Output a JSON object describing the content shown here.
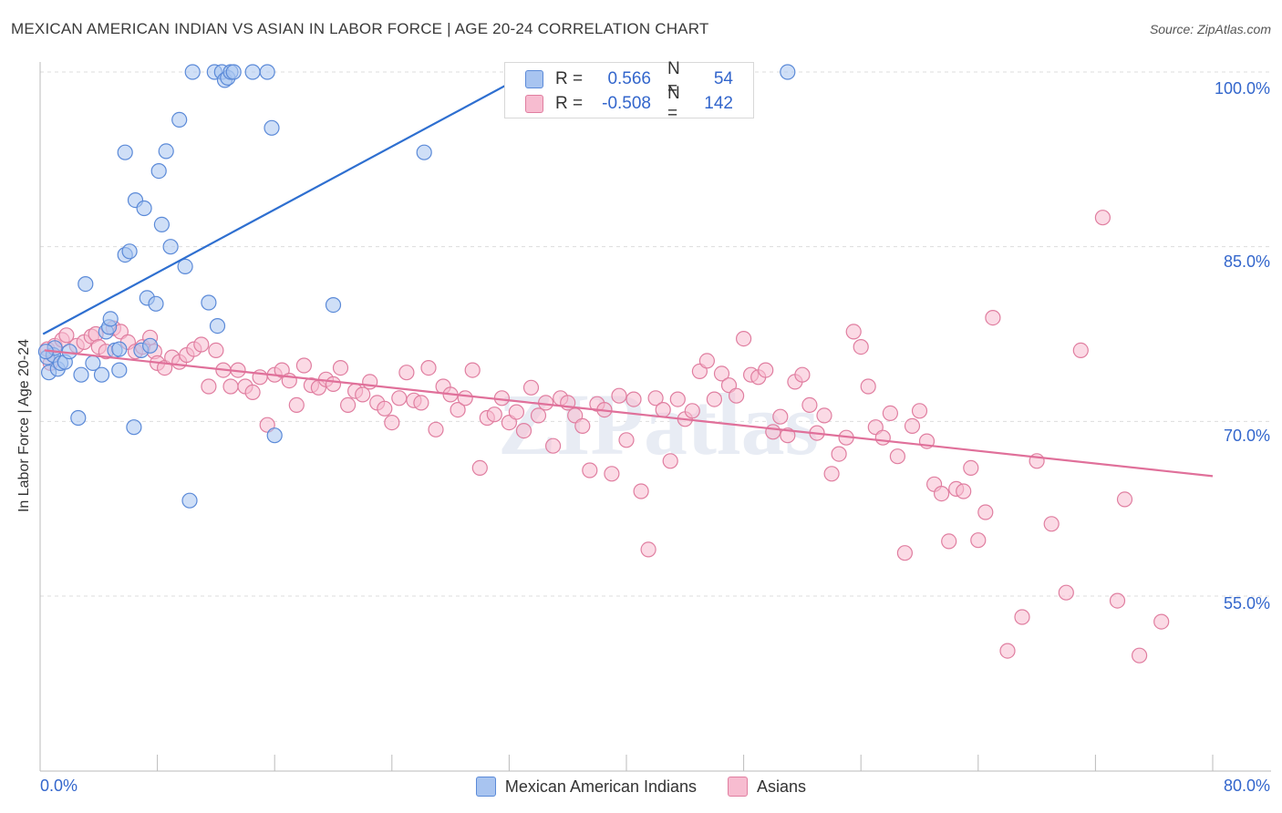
{
  "title": "MEXICAN AMERICAN INDIAN VS ASIAN IN LABOR FORCE | AGE 20-24 CORRELATION CHART",
  "source": "Source: ZipAtlas.com",
  "watermark": "ZIPatlas",
  "colors": {
    "blue_fill": "#a8c4f0",
    "blue_stroke": "#5b8ad8",
    "blue_line": "#2e6fd0",
    "pink_fill": "#f7bcd0",
    "pink_stroke": "#e07ea0",
    "pink_line": "#e0709a",
    "tick_label": "#3366cc",
    "grid": "#dddddd"
  },
  "stats": [
    {
      "r_label": "R =",
      "r_value": "0.566",
      "n_label": "N =",
      "n_value": "54",
      "color": "blue"
    },
    {
      "r_label": "R =",
      "r_value": "-0.508",
      "n_label": "N =",
      "n_value": "142",
      "color": "pink"
    }
  ],
  "legend": [
    {
      "label": "Mexican American Indians",
      "color": "blue"
    },
    {
      "label": "Asians",
      "color": "pink"
    }
  ],
  "chart_data": {
    "type": "scatter",
    "title": "MEXICAN AMERICAN INDIAN VS ASIAN IN LABOR FORCE | AGE 20-24 CORRELATION CHART",
    "xlabel": "",
    "ylabel": "In Labor Force | Age 20-24",
    "xlim": [
      0,
      80
    ],
    "ylim": [
      37,
      102
    ],
    "x_tick_labels": [
      "0.0%",
      "80.0%"
    ],
    "y_ticks": [
      55,
      70,
      85,
      100
    ],
    "y_tick_labels": [
      "55.0%",
      "70.0%",
      "85.0%",
      "100.0%"
    ],
    "grid": true,
    "legend_position": "bottom",
    "series": [
      {
        "name": "Mexican American Indians",
        "color": "blue",
        "trend": {
          "x": [
            0.2,
            34.2
          ],
          "y": [
            77.5,
            100.5
          ]
        },
        "points": [
          [
            0.5,
            75.5
          ],
          [
            0.6,
            74.2
          ],
          [
            0.9,
            75.7
          ],
          [
            1.0,
            76.3
          ],
          [
            1.2,
            74.5
          ],
          [
            1.4,
            75.0
          ],
          [
            1.7,
            75.1
          ],
          [
            2.0,
            76.0
          ],
          [
            2.8,
            74.0
          ],
          [
            3.1,
            81.8
          ],
          [
            3.6,
            75.0
          ],
          [
            4.2,
            74.0
          ],
          [
            4.5,
            77.7
          ],
          [
            4.7,
            78.1
          ],
          [
            4.8,
            78.8
          ],
          [
            5.1,
            76.1
          ],
          [
            5.4,
            74.4
          ],
          [
            5.4,
            76.2
          ],
          [
            5.8,
            84.3
          ],
          [
            5.8,
            93.1
          ],
          [
            6.1,
            84.6
          ],
          [
            6.4,
            69.5
          ],
          [
            6.5,
            89.0
          ],
          [
            6.9,
            76.1
          ],
          [
            7.1,
            88.3
          ],
          [
            7.3,
            80.6
          ],
          [
            7.5,
            76.5
          ],
          [
            7.9,
            80.1
          ],
          [
            8.1,
            91.5
          ],
          [
            8.3,
            86.9
          ],
          [
            8.6,
            93.2
          ],
          [
            8.9,
            85.0
          ],
          [
            9.5,
            95.9
          ],
          [
            9.9,
            83.3
          ],
          [
            10.2,
            63.2
          ],
          [
            10.4,
            100.0
          ],
          [
            11.5,
            80.2
          ],
          [
            11.9,
            100.0
          ],
          [
            12.1,
            78.2
          ],
          [
            12.4,
            100.0
          ],
          [
            12.6,
            99.3
          ],
          [
            12.8,
            99.5
          ],
          [
            13.0,
            100.0
          ],
          [
            13.2,
            100.0
          ],
          [
            14.5,
            100.0
          ],
          [
            15.5,
            100.0
          ],
          [
            15.8,
            95.2
          ],
          [
            16.0,
            68.8
          ],
          [
            20.0,
            80.0
          ],
          [
            26.2,
            93.1
          ],
          [
            35.0,
            100.0
          ],
          [
            51.0,
            100.0
          ],
          [
            2.6,
            70.3
          ],
          [
            0.4,
            76.0
          ]
        ]
      },
      {
        "name": "Asians",
        "color": "pink",
        "trend": {
          "x": [
            0.3,
            80.0
          ],
          "y": [
            76.1,
            65.3
          ]
        },
        "points": [
          [
            0.5,
            76.2
          ],
          [
            0.7,
            75.0
          ],
          [
            1.0,
            76.5
          ],
          [
            1.5,
            77.0
          ],
          [
            1.8,
            77.4
          ],
          [
            2.5,
            76.5
          ],
          [
            3.0,
            76.8
          ],
          [
            3.5,
            77.3
          ],
          [
            3.8,
            77.5
          ],
          [
            4.0,
            76.4
          ],
          [
            4.5,
            76.0
          ],
          [
            5.0,
            78.0
          ],
          [
            5.5,
            77.7
          ],
          [
            6.0,
            76.8
          ],
          [
            6.5,
            76.0
          ],
          [
            7.0,
            76.4
          ],
          [
            7.5,
            77.2
          ],
          [
            7.8,
            76.0
          ],
          [
            8.0,
            75.0
          ],
          [
            8.5,
            74.6
          ],
          [
            9.0,
            75.5
          ],
          [
            9.5,
            75.1
          ],
          [
            10.0,
            75.7
          ],
          [
            10.5,
            76.2
          ],
          [
            11.0,
            76.6
          ],
          [
            11.5,
            73.0
          ],
          [
            12.0,
            76.1
          ],
          [
            12.5,
            74.4
          ],
          [
            13.0,
            73.0
          ],
          [
            13.5,
            74.4
          ],
          [
            14.0,
            73.0
          ],
          [
            14.5,
            72.5
          ],
          [
            15.0,
            73.8
          ],
          [
            15.5,
            69.7
          ],
          [
            16.0,
            74.0
          ],
          [
            16.5,
            74.4
          ],
          [
            17.0,
            73.5
          ],
          [
            17.5,
            71.4
          ],
          [
            18.0,
            74.8
          ],
          [
            18.5,
            73.1
          ],
          [
            19.0,
            72.9
          ],
          [
            19.5,
            73.6
          ],
          [
            20.0,
            73.2
          ],
          [
            20.5,
            74.6
          ],
          [
            21.0,
            71.4
          ],
          [
            21.5,
            72.6
          ],
          [
            22.0,
            72.3
          ],
          [
            22.5,
            73.4
          ],
          [
            23.0,
            71.6
          ],
          [
            23.5,
            71.1
          ],
          [
            24.0,
            69.9
          ],
          [
            24.5,
            72.0
          ],
          [
            25.0,
            74.2
          ],
          [
            25.5,
            71.8
          ],
          [
            26.0,
            71.6
          ],
          [
            26.5,
            74.6
          ],
          [
            27.0,
            69.3
          ],
          [
            27.5,
            73.0
          ],
          [
            28.0,
            72.3
          ],
          [
            28.5,
            71.0
          ],
          [
            29.0,
            72.0
          ],
          [
            29.5,
            74.4
          ],
          [
            30.0,
            66.0
          ],
          [
            30.5,
            70.3
          ],
          [
            31.0,
            70.6
          ],
          [
            31.5,
            72.0
          ],
          [
            32.0,
            69.9
          ],
          [
            32.5,
            70.8
          ],
          [
            33.0,
            69.2
          ],
          [
            33.5,
            72.9
          ],
          [
            34.0,
            70.5
          ],
          [
            34.5,
            71.6
          ],
          [
            35.0,
            67.9
          ],
          [
            35.5,
            72.0
          ],
          [
            36.0,
            71.6
          ],
          [
            36.5,
            70.5
          ],
          [
            37.0,
            69.6
          ],
          [
            37.5,
            65.8
          ],
          [
            38.0,
            71.5
          ],
          [
            38.5,
            71.0
          ],
          [
            39.0,
            65.5
          ],
          [
            39.5,
            72.2
          ],
          [
            40.0,
            68.4
          ],
          [
            40.5,
            71.9
          ],
          [
            41.0,
            64.0
          ],
          [
            41.5,
            59.0
          ],
          [
            42.0,
            72.0
          ],
          [
            42.5,
            71.0
          ],
          [
            43.0,
            66.6
          ],
          [
            43.5,
            71.9
          ],
          [
            44.0,
            70.2
          ],
          [
            44.5,
            70.9
          ],
          [
            45.0,
            74.3
          ],
          [
            45.5,
            75.2
          ],
          [
            46.0,
            71.9
          ],
          [
            46.5,
            74.1
          ],
          [
            47.0,
            73.1
          ],
          [
            47.5,
            72.2
          ],
          [
            48.0,
            77.1
          ],
          [
            48.5,
            74.0
          ],
          [
            49.0,
            73.8
          ],
          [
            49.5,
            74.4
          ],
          [
            50.0,
            69.1
          ],
          [
            50.5,
            70.4
          ],
          [
            51.0,
            68.8
          ],
          [
            51.5,
            73.4
          ],
          [
            52.0,
            74.0
          ],
          [
            52.5,
            71.4
          ],
          [
            53.0,
            69.0
          ],
          [
            53.5,
            70.5
          ],
          [
            54.0,
            65.5
          ],
          [
            54.5,
            67.2
          ],
          [
            55.0,
            68.6
          ],
          [
            55.5,
            77.7
          ],
          [
            56.0,
            76.4
          ],
          [
            56.5,
            73.0
          ],
          [
            57.0,
            69.5
          ],
          [
            57.5,
            68.6
          ],
          [
            58.0,
            70.7
          ],
          [
            58.5,
            67.0
          ],
          [
            59.0,
            58.7
          ],
          [
            59.5,
            69.6
          ],
          [
            60.0,
            70.9
          ],
          [
            60.5,
            68.3
          ],
          [
            61.0,
            64.6
          ],
          [
            61.5,
            63.8
          ],
          [
            62.0,
            59.7
          ],
          [
            62.5,
            64.2
          ],
          [
            63.0,
            64.0
          ],
          [
            63.5,
            66.0
          ],
          [
            64.0,
            59.8
          ],
          [
            64.5,
            62.2
          ],
          [
            65.0,
            78.9
          ],
          [
            66.0,
            50.3
          ],
          [
            67.0,
            53.2
          ],
          [
            68.0,
            66.6
          ],
          [
            69.0,
            61.2
          ],
          [
            70.0,
            55.3
          ],
          [
            71.0,
            76.1
          ],
          [
            72.5,
            87.5
          ],
          [
            73.5,
            54.6
          ],
          [
            74.0,
            63.3
          ],
          [
            75.0,
            49.9
          ],
          [
            76.5,
            52.8
          ]
        ]
      }
    ]
  }
}
